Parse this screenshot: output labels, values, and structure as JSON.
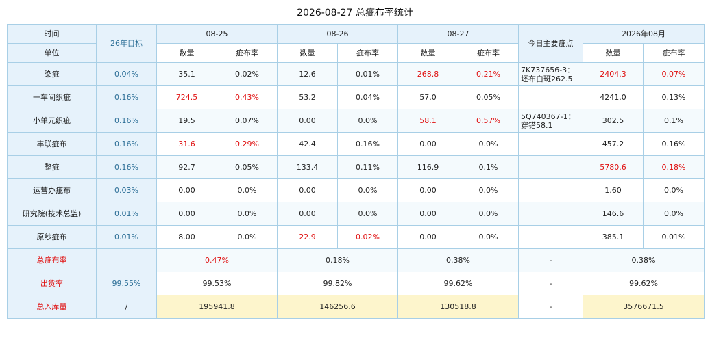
{
  "title": "2026-08-27 总疵布率统计",
  "header": {
    "time_label": "时间",
    "unit_label": "单位",
    "target_label": "26年目标",
    "dates": [
      "08-25",
      "08-26",
      "08-27"
    ],
    "main_defect_label": "今日主要疵点",
    "month_label": "2026年08月",
    "qty_label": "数量",
    "rate_label": "疵布率"
  },
  "rows": [
    {
      "name": "染疵",
      "target": "0.04%",
      "d1_qty": "35.1",
      "d1_rate": "0.02%",
      "d2_qty": "12.6",
      "d2_rate": "0.01%",
      "d3_qty": "268.8",
      "d3_rate": "0.21%",
      "note": "7K737656-3：\n坯布白斑262.5",
      "m_qty": "2404.3",
      "m_rate": "0.07%"
    },
    {
      "name": "一车间织疵",
      "target": "0.16%",
      "d1_qty": "724.5",
      "d1_rate": "0.43%",
      "d2_qty": "53.2",
      "d2_rate": "0.04%",
      "d3_qty": "57.0",
      "d3_rate": "0.05%",
      "note": "",
      "m_qty": "4241.0",
      "m_rate": "0.13%"
    },
    {
      "name": "小单元织疵",
      "target": "0.16%",
      "d1_qty": "19.5",
      "d1_rate": "0.07%",
      "d2_qty": "0.00",
      "d2_rate": "0.0%",
      "d3_qty": "58.1",
      "d3_rate": "0.57%",
      "note": "5Q740367-1：\n穿错58.1",
      "m_qty": "302.5",
      "m_rate": "0.1%"
    },
    {
      "name": "丰联疵布",
      "target": "0.16%",
      "d1_qty": "31.6",
      "d1_rate": "0.29%",
      "d2_qty": "42.4",
      "d2_rate": "0.16%",
      "d3_qty": "0.00",
      "d3_rate": "0.0%",
      "note": "",
      "m_qty": "457.2",
      "m_rate": "0.16%"
    },
    {
      "name": "整疵",
      "target": "0.16%",
      "d1_qty": "92.7",
      "d1_rate": "0.05%",
      "d2_qty": "133.4",
      "d2_rate": "0.11%",
      "d3_qty": "116.9",
      "d3_rate": "0.1%",
      "note": "",
      "m_qty": "5780.6",
      "m_rate": "0.18%"
    },
    {
      "name": "运营办疵布",
      "target": "0.03%",
      "d1_qty": "0.00",
      "d1_rate": "0.0%",
      "d2_qty": "0.00",
      "d2_rate": "0.0%",
      "d3_qty": "0.00",
      "d3_rate": "0.0%",
      "note": "",
      "m_qty": "1.60",
      "m_rate": "0.0%"
    },
    {
      "name": "研究院(技术总监)",
      "target": "0.01%",
      "d1_qty": "0.00",
      "d1_rate": "0.0%",
      "d2_qty": "0.00",
      "d2_rate": "0.0%",
      "d3_qty": "0.00",
      "d3_rate": "0.0%",
      "note": "",
      "m_qty": "146.6",
      "m_rate": "0.0%"
    },
    {
      "name": "原纱疵布",
      "target": "0.01%",
      "d1_qty": "8.00",
      "d1_rate": "0.0%",
      "d2_qty": "22.9",
      "d2_rate": "0.02%",
      "d3_qty": "0.00",
      "d3_rate": "0.0%",
      "note": "",
      "m_qty": "385.1",
      "m_rate": "0.01%"
    }
  ],
  "summary": [
    {
      "name": "总疵布率",
      "target": "",
      "d1": "0.47%",
      "d2": "0.18%",
      "d3": "0.38%",
      "note": "-",
      "month": "0.38%"
    },
    {
      "name": "出货率",
      "target": "99.55%",
      "d1": "99.53%",
      "d2": "99.82%",
      "d3": "99.62%",
      "note": "-",
      "month": "99.62%"
    },
    {
      "name": "总入库量",
      "target": "/",
      "d1": "195941.8",
      "d2": "146256.6",
      "d3": "130518.8",
      "note": "-",
      "month": "3576671.5"
    }
  ],
  "colors": {
    "header_bg": "#e6f2fb",
    "border": "#a8cfe6",
    "red": "#e01010",
    "target_text": "#2b6e96",
    "highlight_bg": "#fdf5cc"
  }
}
